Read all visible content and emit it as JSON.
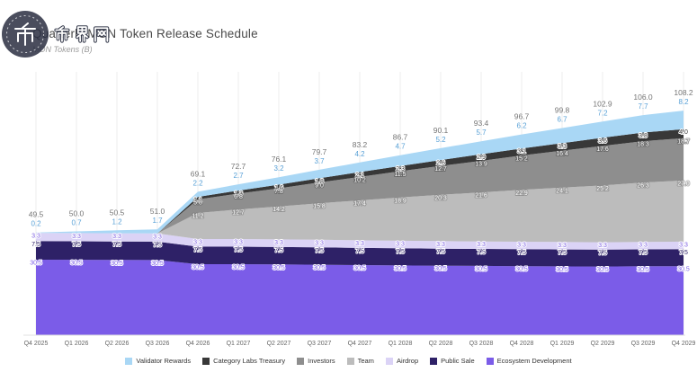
{
  "header": {
    "title": "Quarterly MON Token Release Schedule",
    "subtitle": "MON Tokens (B)"
  },
  "watermark": {
    "text": "币界网"
  },
  "style": {
    "background": "#ffffff",
    "grid_color": "#ededed",
    "baseline_color": "#e0e0e0",
    "tick_color": "#666666",
    "total_label_color": "#757575"
  },
  "chart_data": {
    "type": "area",
    "stacked": true,
    "grid": "vertical-faint",
    "legend_position": "bottom",
    "title": "Quarterly MON Token Release Schedule",
    "ylabel": "MON Tokens (B)",
    "xlabel": "",
    "ylim": [
      0,
      115
    ],
    "categories": [
      "Q4 2025",
      "Q1 2026",
      "Q2 2026",
      "Q3 2026",
      "Q4 2026",
      "Q1 2027",
      "Q2 2027",
      "Q3 2027",
      "Q4 2027",
      "Q1 2028",
      "Q2 2028",
      "Q3 2028",
      "Q4 2028",
      "Q1 2029",
      "Q2 2029",
      "Q3 2029",
      "Q4 2029"
    ],
    "totals": [
      49.5,
      50.0,
      50.5,
      51.0,
      69.1,
      72.7,
      76.1,
      79.7,
      83.2,
      86.7,
      90.1,
      93.4,
      96.7,
      99.8,
      102.9,
      106.0,
      108.2
    ],
    "series": [
      {
        "name": "Validator Rewards",
        "color": "#a9d7f5",
        "label_fill": "#58a0d6",
        "halo": "none",
        "values": [
          0.2,
          0.7,
          1.2,
          1.7,
          2.2,
          2.7,
          3.2,
          3.7,
          4.2,
          4.7,
          5.2,
          5.7,
          6.2,
          6.7,
          7.2,
          7.7,
          8.2
        ]
      },
      {
        "name": "Category Labs Treasury",
        "color": "#383838",
        "label_fill": "#333333",
        "halo": "#ffffff",
        "values": [
          null,
          null,
          null,
          null,
          1.1,
          1.3,
          1.6,
          1.8,
          2.1,
          2.3,
          2.6,
          2.9,
          3.1,
          3.3,
          3.6,
          3.8,
          4.0
        ]
      },
      {
        "name": "Investors",
        "color": "#8e8e8e",
        "label_fill": "#ffffff",
        "halo": "rgba(80,80,80,0.55)",
        "values": [
          null,
          null,
          null,
          null,
          5.8,
          6.8,
          7.8,
          9.0,
          10.2,
          11.5,
          12.7,
          13.9,
          15.2,
          16.4,
          17.6,
          18.3,
          18.7
        ]
      },
      {
        "name": "Team",
        "color": "#bcbcbc",
        "label_fill": "#ffffff",
        "halo": "rgba(120,120,120,0.55)",
        "values": [
          null,
          null,
          null,
          null,
          11.2,
          12.7,
          14.2,
          15.8,
          17.4,
          18.9,
          20.3,
          21.6,
          22.9,
          24.1,
          25.2,
          26.3,
          27.0
        ]
      },
      {
        "name": "Airdrop",
        "color": "#dbd3f6",
        "label_fill": "#7a5ce0",
        "halo": "#ffffff",
        "values": [
          3.3,
          3.3,
          3.3,
          3.3,
          3.3,
          3.3,
          3.3,
          3.3,
          3.3,
          3.3,
          3.3,
          3.3,
          3.3,
          3.3,
          3.3,
          3.3,
          3.3
        ]
      },
      {
        "name": "Public Sale",
        "color": "#2e2167",
        "label_fill": "#2e2167",
        "halo": "#ffffff",
        "values": [
          7.5,
          7.5,
          7.5,
          7.5,
          7.5,
          7.5,
          7.5,
          7.5,
          7.5,
          7.5,
          7.5,
          7.5,
          7.5,
          7.5,
          7.5,
          7.5,
          7.5
        ]
      },
      {
        "name": "Ecosystem Development",
        "color": "#7b5ce8",
        "label_fill": "#7b5ce8",
        "halo": "#ffffff",
        "values": [
          30.5,
          30.5,
          30.5,
          30.5,
          30.5,
          30.5,
          30.5,
          30.5,
          30.5,
          30.5,
          30.5,
          30.5,
          30.5,
          30.5,
          30.5,
          30.5,
          30.5
        ]
      }
    ]
  }
}
